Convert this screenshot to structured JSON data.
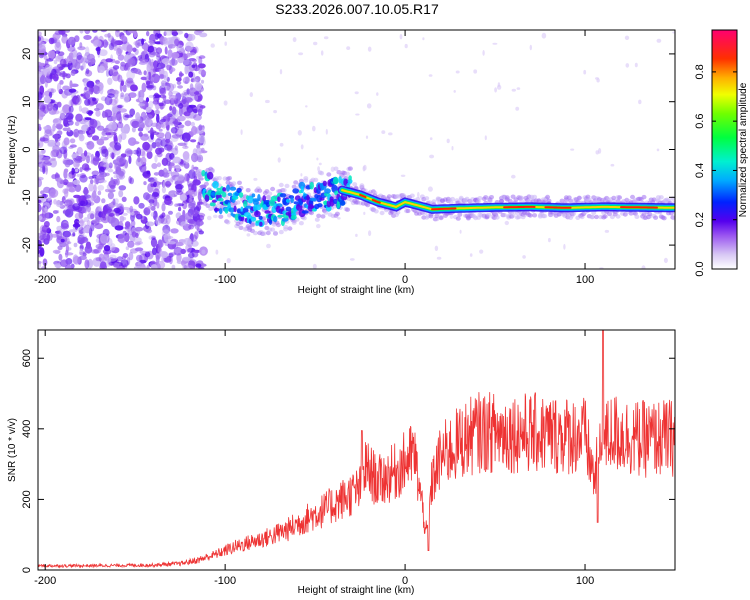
{
  "chart_data": [
    {
      "type": "heatmap",
      "title": "S233.2026.007.10.05.R17",
      "xlabel": "Height of straight line (km)",
      "ylabel": "Frequency (Hz)",
      "xlim": [
        -204,
        150
      ],
      "ylim": [
        -25,
        25
      ],
      "xticks": [
        -200,
        -100,
        0,
        100
      ],
      "yticks": [
        -20,
        -10,
        0,
        10,
        20
      ],
      "signal_trace": {
        "x": [
          -112,
          -105,
          -95,
          -85,
          -75,
          -65,
          -55,
          -45,
          -35,
          -25,
          -15,
          -5,
          0,
          5,
          15,
          30,
          50,
          70,
          90,
          110,
          130,
          150
        ],
        "y": [
          -7,
          -10,
          -11,
          -12.5,
          -13,
          -12,
          -10,
          -9.5,
          -8.5,
          -9.5,
          -11,
          -12,
          -11,
          -11.5,
          -12.5,
          -12.3,
          -12.1,
          -12.0,
          -12.2,
          -12.0,
          -12.1,
          -12.2
        ]
      },
      "colorbar": {
        "label": "Normalized spectral amplitude",
        "range": [
          0,
          0.97
        ],
        "ticks": [
          0.0,
          0.2,
          0.4,
          0.6,
          0.8
        ]
      }
    },
    {
      "type": "line",
      "title": "",
      "xlabel": "Height of straight line (km)",
      "ylabel": "SNR (10 * v/v)",
      "xlim": [
        -204,
        150
      ],
      "ylim": [
        0,
        680
      ],
      "xticks": [
        -200,
        -100,
        0,
        100
      ],
      "yticks": [
        0,
        200,
        400,
        600
      ],
      "color": "#ee3333",
      "series": [
        {
          "name": "SNR",
          "x": [
            -204,
            -180,
            -160,
            -140,
            -125,
            -115,
            -105,
            -95,
            -85,
            -75,
            -65,
            -55,
            -45,
            -35,
            -25,
            -22,
            -15,
            -5,
            5,
            12,
            15,
            20,
            25,
            30,
            40,
            60,
            80,
            100,
            105,
            110,
            115,
            130,
            150
          ],
          "y": [
            12,
            12,
            13,
            14,
            18,
            28,
            45,
            65,
            80,
            95,
            115,
            145,
            170,
            200,
            230,
            290,
            250,
            280,
            330,
            100,
            250,
            320,
            340,
            360,
            390,
            390,
            385,
            380,
            260,
            360,
            390,
            370,
            375
          ]
        }
      ],
      "spikes": [
        {
          "x": -24,
          "y": 395
        },
        {
          "x": 13,
          "y": 55
        },
        {
          "x": 107,
          "y": 135
        },
        {
          "x": 110,
          "y": 680
        }
      ]
    }
  ]
}
